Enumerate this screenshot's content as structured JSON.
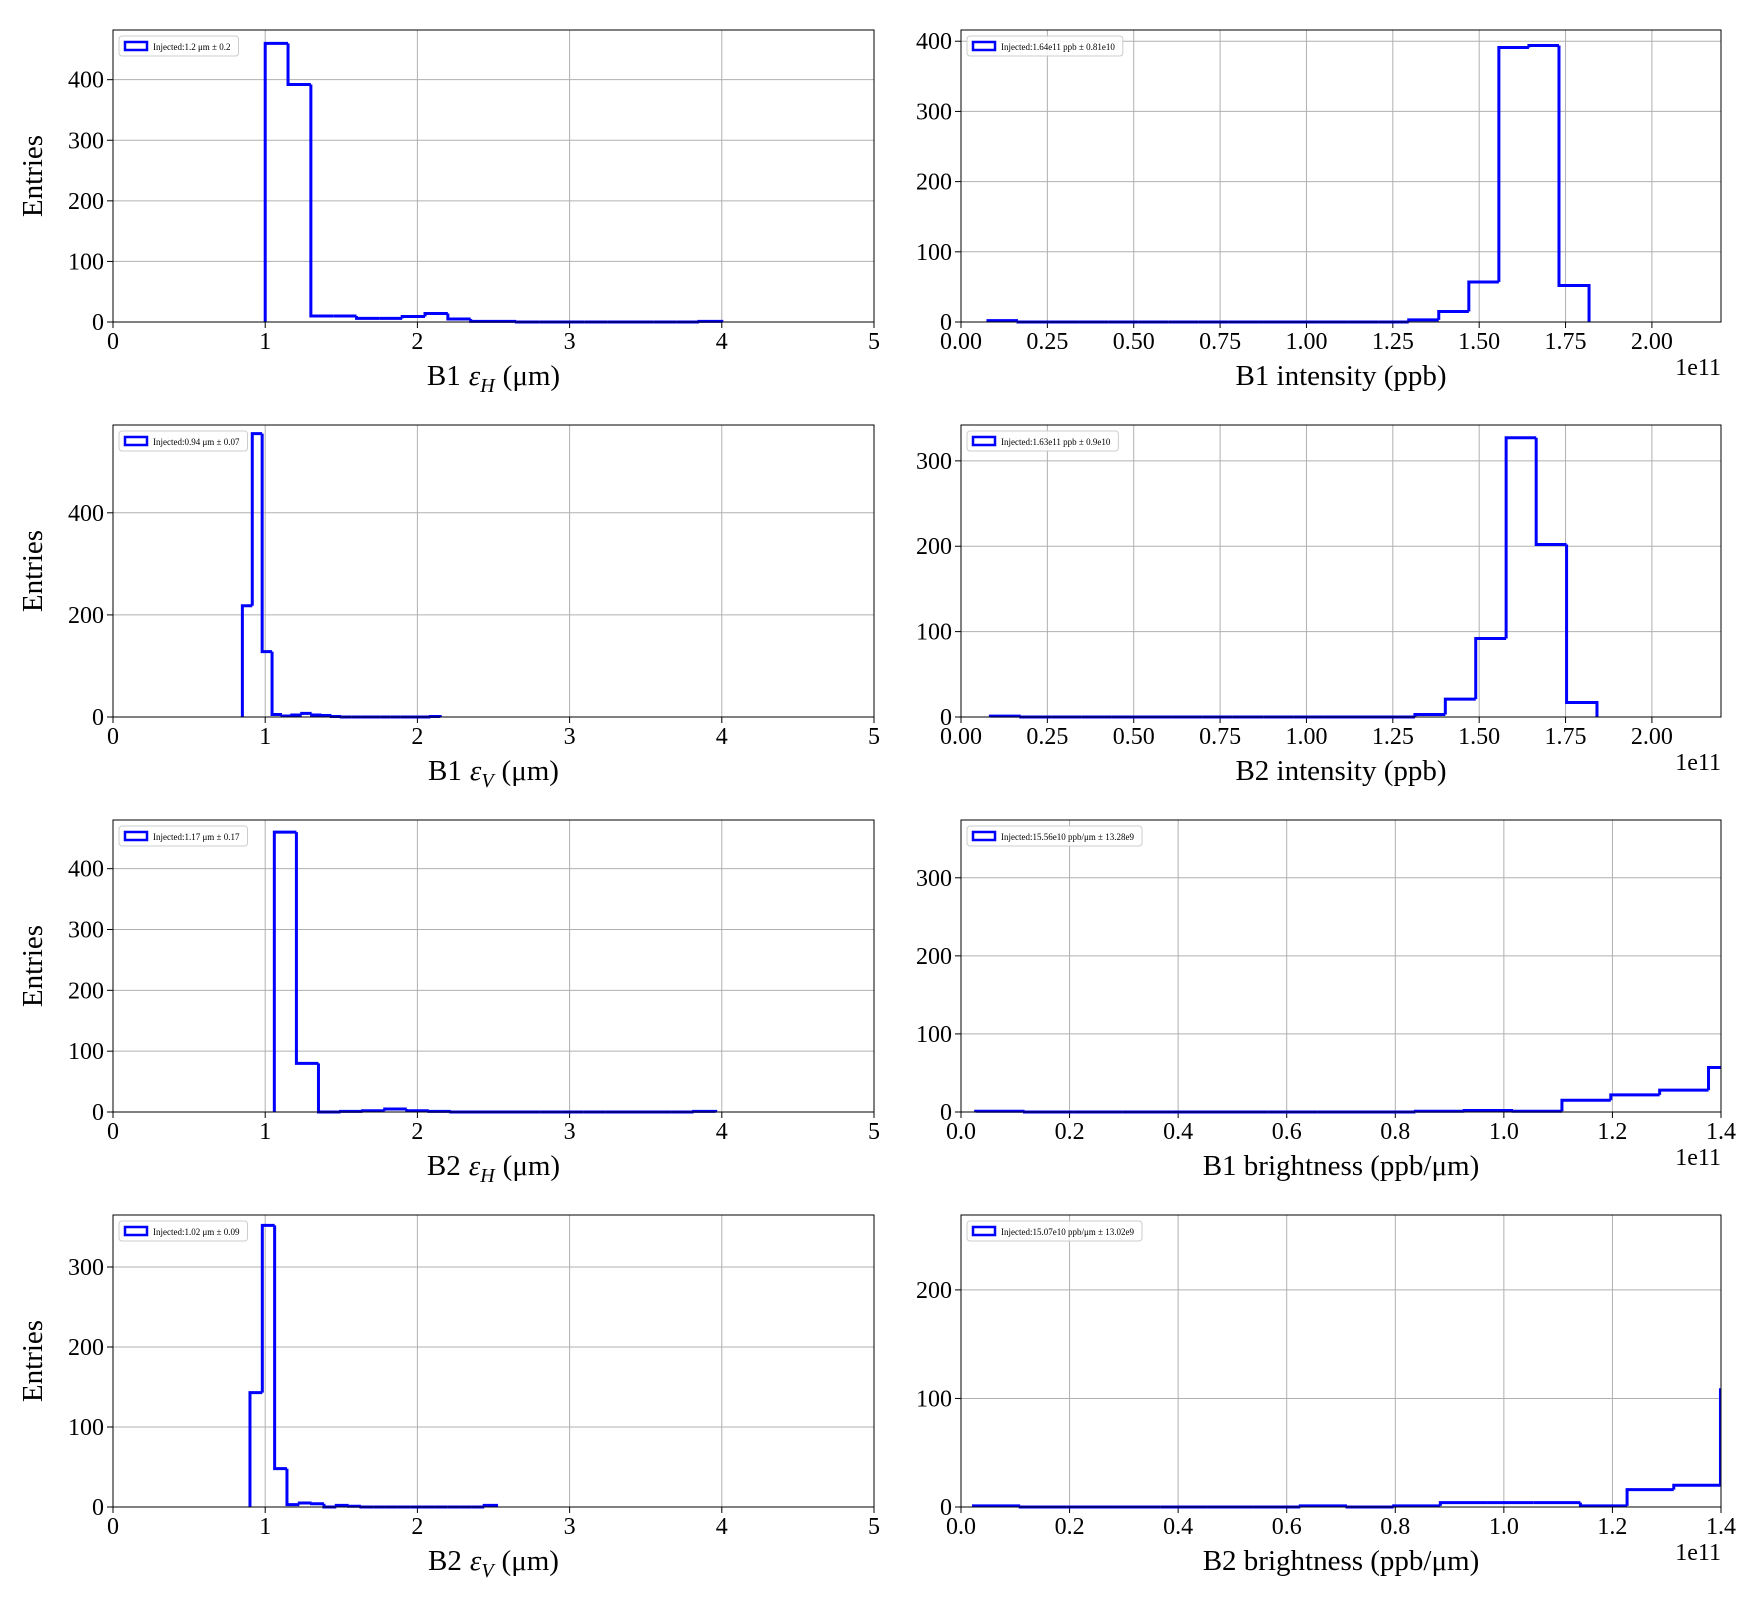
{
  "chart_data": [
    {
      "type": "histogram",
      "xlabel": {
        "beam": "B1",
        "symbol": "ε",
        "sub": "H",
        "unit": "(μm)"
      },
      "ylabel": "Entries",
      "bins": [
        1.0,
        1.15,
        1.3,
        1.45,
        1.6,
        1.75,
        1.9,
        2.05,
        2.2,
        2.35,
        2.5,
        2.65,
        2.8,
        2.95,
        3.1,
        3.25,
        3.4,
        3.55,
        3.7,
        3.85,
        4.0
      ],
      "series": [
        {
          "name": "Injected:1.2 μm ± 0.2",
          "color": "#0000ff",
          "values": [
            460,
            392,
            10,
            10,
            6,
            6,
            9,
            14,
            5,
            1,
            1,
            0,
            0,
            0,
            0,
            0,
            0,
            0,
            0,
            1
          ]
        }
      ],
      "xlim": [
        0,
        5
      ],
      "xticks": [
        0,
        1,
        2,
        3,
        4,
        5
      ],
      "ylim": [
        0,
        482
      ],
      "yticks": [
        0,
        100,
        200,
        300,
        400
      ],
      "grid": true
    },
    {
      "type": "histogram",
      "xlabel": "B1 intensity (ppb)",
      "x_offset_label": "1e11",
      "bins": [
        0.078,
        0.165,
        0.252,
        0.339,
        0.426,
        0.513,
        0.6,
        0.687,
        0.774,
        0.861,
        0.948,
        1.035,
        1.122,
        1.209,
        1.296,
        1.383,
        1.47,
        1.557,
        1.644,
        1.731,
        1.818
      ],
      "series": [
        {
          "name": "Injected:1.64e11 ppb ± 0.81e10",
          "color": "#0000ff",
          "values": [
            2,
            0,
            0,
            0,
            0,
            0,
            0,
            0,
            0,
            0,
            0,
            0,
            0,
            0,
            3,
            15,
            57,
            391,
            394,
            52
          ]
        }
      ],
      "xlim": [
        0,
        2.2
      ],
      "xticks": [
        {
          "value": 0,
          "label": "0.00"
        },
        0.25,
        {
          "value": 0.5,
          "label": "0.50"
        },
        0.75,
        {
          "value": 1,
          "label": "1.00"
        },
        1.25,
        {
          "value": 1.5,
          "label": "1.50"
        },
        1.75,
        {
          "value": 2,
          "label": "2.00"
        }
      ],
      "ylim": [
        0,
        416
      ],
      "yticks": [
        0,
        100,
        200,
        300,
        400
      ],
      "grid": true
    },
    {
      "type": "histogram",
      "xlabel": {
        "beam": "B1",
        "symbol": "ε",
        "sub": "V",
        "unit": "(μm)"
      },
      "ylabel": "Entries",
      "bins": [
        0.85,
        0.915,
        0.98,
        1.045,
        1.11,
        1.175,
        1.24,
        1.305,
        1.37,
        1.435,
        1.5,
        1.565,
        1.63,
        1.695,
        1.76,
        1.825,
        1.89,
        1.955,
        2.02,
        2.085,
        2.15
      ],
      "series": [
        {
          "name": "Injected:0.94 μm ± 0.07",
          "color": "#0000ff",
          "values": [
            218,
            555,
            128,
            5,
            2,
            4,
            7,
            4,
            3,
            1,
            0,
            0,
            0,
            0,
            0,
            0,
            0,
            0,
            0,
            1
          ]
        }
      ],
      "xlim": [
        0,
        5
      ],
      "xticks": [
        0,
        1,
        2,
        3,
        4,
        5
      ],
      "ylim": [
        0,
        572
      ],
      "yticks": [
        0,
        200,
        400
      ],
      "grid": true
    },
    {
      "type": "histogram",
      "xlabel": "B2 intensity (ppb)",
      "x_offset_label": "1e11",
      "bins": [
        0.085,
        0.173,
        0.261,
        0.348,
        0.436,
        0.524,
        0.612,
        0.7,
        0.787,
        0.875,
        0.963,
        1.051,
        1.139,
        1.226,
        1.314,
        1.402,
        1.49,
        1.578,
        1.665,
        1.753,
        1.841
      ],
      "series": [
        {
          "name": "Injected:1.63e11 ppb ± 0.9e10",
          "color": "#0000ff",
          "values": [
            1,
            0,
            0,
            0,
            0,
            0,
            0,
            0,
            0,
            0,
            0,
            0,
            0,
            0,
            3,
            21,
            92,
            327,
            202,
            17
          ]
        }
      ],
      "xlim": [
        0,
        2.2
      ],
      "xticks": [
        {
          "value": 0,
          "label": "0.00"
        },
        0.25,
        {
          "value": 0.5,
          "label": "0.50"
        },
        0.75,
        {
          "value": 1,
          "label": "1.00"
        },
        1.25,
        {
          "value": 1.5,
          "label": "1.50"
        },
        1.75,
        {
          "value": 2,
          "label": "2.00"
        }
      ],
      "ylim": [
        0,
        342
      ],
      "yticks": [
        0,
        100,
        200,
        300
      ],
      "grid": true
    },
    {
      "type": "histogram",
      "xlabel": {
        "beam": "B2",
        "symbol": "ε",
        "sub": "H",
        "unit": "(μm)"
      },
      "ylabel": "Entries",
      "bins": [
        1.06,
        1.205,
        1.35,
        1.495,
        1.64,
        1.785,
        1.93,
        2.075,
        2.22,
        2.365,
        2.51,
        2.655,
        2.8,
        2.945,
        3.09,
        3.235,
        3.38,
        3.525,
        3.67,
        3.815,
        3.96
      ],
      "series": [
        {
          "name": "Injected:1.17 μm ± 0.17",
          "color": "#0000ff",
          "values": [
            460,
            80,
            0,
            1,
            2,
            5,
            2,
            1,
            0,
            0,
            0,
            0,
            0,
            0,
            0,
            0,
            0,
            0,
            0,
            1
          ]
        }
      ],
      "xlim": [
        0,
        5
      ],
      "xticks": [
        0,
        1,
        2,
        3,
        4,
        5
      ],
      "ylim": [
        0,
        480
      ],
      "yticks": [
        0,
        100,
        200,
        300,
        400
      ],
      "grid": true
    },
    {
      "type": "histogram",
      "xlabel": "B1 brightness (ppb/μm)",
      "x_offset_label": "1e11",
      "bins": [
        0.027,
        0.117,
        0.207,
        0.297,
        0.387,
        0.477,
        0.567,
        0.657,
        0.747,
        0.837,
        0.927,
        1.017,
        1.107,
        1.197,
        1.287,
        1.377,
        1.467
      ],
      "series": [
        {
          "name": "Injected:15.56e10 ppb/μm ± 13.28e9",
          "color": "#0000ff",
          "values": [
            1,
            0,
            0,
            0,
            0,
            0,
            0,
            0,
            0,
            1,
            2,
            1,
            15,
            22,
            28,
            57
          ]
        }
      ],
      "xlim": [
        0,
        1.4
      ],
      "xticks": [
        {
          "value": 0,
          "label": "0.0"
        },
        0.2,
        0.4,
        0.6,
        0.8,
        {
          "value": 1,
          "label": "1.0"
        },
        1.2,
        1.4
      ],
      "ylim": [
        0,
        374
      ],
      "yticks": [
        0,
        100,
        200,
        300
      ],
      "grid": true
    },
    {
      "type": "histogram",
      "xlabel": {
        "beam": "B2",
        "symbol": "ε",
        "sub": "V",
        "unit": "(μm)"
      },
      "ylabel": "Entries",
      "bins": [
        0.9,
        0.981,
        1.062,
        1.143,
        1.224,
        1.305,
        1.386,
        1.467,
        1.548,
        1.629,
        1.71,
        1.791,
        1.872,
        1.953,
        2.034,
        2.115,
        2.196,
        2.277,
        2.358,
        2.439,
        2.52
      ],
      "series": [
        {
          "name": "Injected:1.02 μm ± 0.09",
          "color": "#0000ff",
          "values": [
            143,
            352,
            48,
            3,
            5,
            4,
            0,
            2,
            1,
            0,
            0,
            0,
            0,
            0,
            0,
            0,
            0,
            0,
            0,
            2
          ]
        }
      ],
      "xlim": [
        0,
        5
      ],
      "xticks": [
        0,
        1,
        2,
        3,
        4,
        5
      ],
      "ylim": [
        0,
        365
      ],
      "yticks": [
        0,
        100,
        200,
        300
      ],
      "grid": true
    },
    {
      "type": "histogram",
      "xlabel": "B2 brightness (ppb/μm)",
      "x_offset_label": "1e11",
      "bins": [
        0.023,
        0.109,
        0.195,
        0.281,
        0.367,
        0.453,
        0.539,
        0.625,
        0.711,
        0.797,
        0.883,
        0.969,
        1.055,
        1.141,
        1.227,
        1.313,
        1.399,
        1.485
      ],
      "series": [
        {
          "name": "Injected:15.07e10 ppb/μm ± 13.02e9",
          "color": "#0000ff",
          "values": [
            1,
            0,
            0,
            0,
            0,
            0,
            0,
            1,
            0,
            1,
            4,
            4,
            4,
            1,
            16,
            20,
            108
          ]
        }
      ],
      "xlim": [
        0,
        1.4
      ],
      "xticks": [
        {
          "value": 0,
          "label": "0.0"
        },
        0.2,
        0.4,
        0.6,
        0.8,
        {
          "value": 1,
          "label": "1.0"
        },
        1.2,
        1.4
      ],
      "ylim": [
        0,
        269
      ],
      "yticks": [
        0,
        100,
        200
      ],
      "grid": true
    }
  ]
}
